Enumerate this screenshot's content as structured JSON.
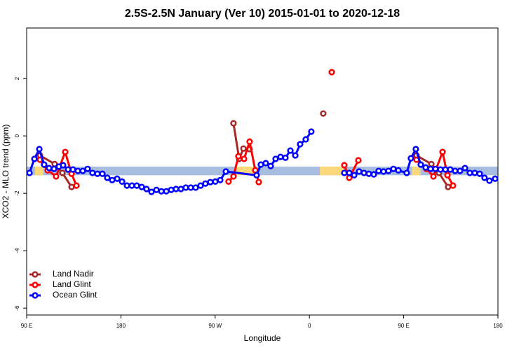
{
  "chart_data": {
    "type": "line",
    "title": "2.5S-2.5N January (Ver 10)   2015-01-01 to 2020-12-18",
    "x_label": "Longitude",
    "y_label": "XCO2 - MLO trend (ppm)",
    "xlim": [
      90,
      540
    ],
    "ylim": [
      -6.24,
      3.76
    ],
    "xticks": [
      {
        "value": 90,
        "label": "90 E"
      },
      {
        "value": 180,
        "label": "180"
      },
      {
        "value": 270,
        "label": "90 W"
      },
      {
        "value": 360,
        "label": "0"
      },
      {
        "value": 450,
        "label": "90 E"
      },
      {
        "value": 540,
        "label": "180"
      }
    ],
    "yticks": [
      2,
      0,
      -2,
      -4,
      -6
    ],
    "legend": "bottom-left",
    "band": {
      "ylim": [
        -1.37,
        -1.07
      ],
      "color": "#a7bddf",
      "segments": [
        {
          "xlim": [
            98,
            106
          ],
          "color": "#fbd97a"
        },
        {
          "xlim": [
            290,
            307
          ],
          "color": "#fbd97a"
        },
        {
          "xlim": [
            370,
            393
          ],
          "color": "#fbd97a"
        },
        {
          "xlim": [
            458,
            466
          ],
          "color": "#fbd97a"
        }
      ]
    },
    "series": [
      {
        "name": "Land Nadir",
        "color": "#a52a2a",
        "x": [
          102.7,
          116.8,
          124.1,
          132.9,
          null,
          287.5,
          292.9,
          297.0,
          302.9,
          null,
          373.2,
          null,
          462.3,
          476.4,
          483.7,
          492.4
        ],
        "values": [
          -0.68,
          -0.98,
          -1.29,
          -1.78,
          null,
          0.44,
          -0.8,
          -0.44,
          -0.46,
          null,
          0.78,
          null,
          -0.68,
          -0.98,
          -1.29,
          -1.78
        ]
      },
      {
        "name": "Land Glint",
        "color": "#ff0000",
        "x": [
          102.7,
          110.1,
          118.1,
          126.8,
          132.9,
          137.5,
          null,
          282.8,
          287.5,
          292.2,
          297.6,
          302.9,
          308.3,
          311.6,
          null,
          381.3,
          null,
          393.3,
          398.0,
          406.7,
          null,
          462.3,
          471.7,
          478.4,
          487.1,
          491.8,
          497.1
        ],
        "values": [
          -0.83,
          -1.2,
          -1.41,
          -0.56,
          -1.32,
          -1.73,
          null,
          -1.59,
          -1.41,
          -0.71,
          -0.8,
          -0.2,
          -1.2,
          -1.61,
          null,
          2.22,
          null,
          -1.02,
          -1.46,
          -0.85,
          null,
          -0.83,
          -1.15,
          -1.41,
          -0.56,
          -1.37,
          -1.73
        ]
      },
      {
        "name": "Ocean Glint",
        "color": "#0000ff",
        "x": [
          92.7,
          97.4,
          102.1,
          106.7,
          111.4,
          116.1,
          120.8,
          124.8,
          129.5,
          134.2,
          138.9,
          143.6,
          148.2,
          152.9,
          157.6,
          162.3,
          167.0,
          171.7,
          176.4,
          181.1,
          185.8,
          190.5,
          195.2,
          199.9,
          204.5,
          209.2,
          213.9,
          218.6,
          223.3,
          228.0,
          232.6,
          237.3,
          242.0,
          246.7,
          251.4,
          256.1,
          260.7,
          265.4,
          270.1,
          274.8,
          280.2,
          309.6,
          313.6,
          318.3,
          323.0,
          327.7,
          332.4,
          337.1,
          341.8,
          346.5,
          351.1,
          356.5,
          361.8,
          null,
          393.3,
          398.0,
          402.7,
          407.4,
          412.1,
          416.8,
          421.5,
          426.1,
          430.8,
          435.5,
          440.2,
          444.9,
          452.9,
          456.9,
          461.6,
          466.3,
          471.0,
          475.7,
          480.4,
          485.1,
          489.8,
          494.4,
          499.1,
          503.8,
          508.5,
          513.2,
          517.9,
          522.6,
          527.2,
          531.9,
          537.3
        ],
        "values": [
          -1.29,
          -0.8,
          -0.46,
          -1.0,
          -1.12,
          -1.15,
          -1.07,
          -1.02,
          -1.17,
          -1.17,
          -1.22,
          -1.22,
          -1.15,
          -1.29,
          -1.32,
          -1.32,
          -1.46,
          -1.54,
          -1.49,
          -1.59,
          -1.73,
          -1.73,
          -1.73,
          -1.78,
          -1.85,
          -1.95,
          -1.88,
          -1.93,
          -1.93,
          -1.88,
          -1.85,
          -1.85,
          -1.8,
          -1.8,
          -1.8,
          -1.73,
          -1.66,
          -1.61,
          -1.59,
          -1.54,
          -1.24,
          -1.37,
          -1.0,
          -0.95,
          -1.05,
          -0.8,
          -0.73,
          -0.76,
          -0.51,
          -0.68,
          -0.29,
          -0.12,
          0.15,
          null,
          -1.29,
          -1.29,
          -1.37,
          -1.24,
          -1.29,
          -1.32,
          -1.34,
          -1.22,
          -1.24,
          -1.22,
          -1.15,
          -1.2,
          -1.29,
          -0.78,
          -0.46,
          -1.0,
          -1.1,
          -1.15,
          -1.15,
          -1.17,
          -1.17,
          -1.17,
          -1.22,
          -1.22,
          -1.12,
          -1.29,
          -1.29,
          -1.32,
          -1.46,
          -1.56,
          -1.49
        ]
      }
    ]
  }
}
